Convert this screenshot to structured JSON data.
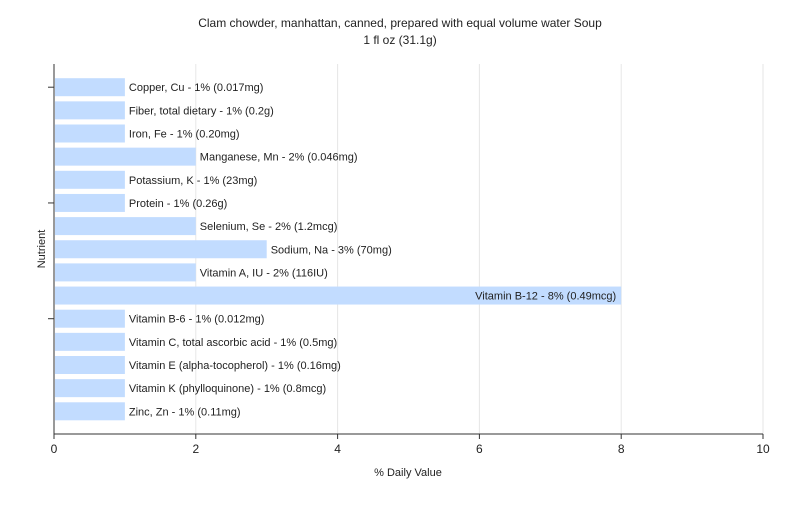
{
  "chart_data": {
    "type": "bar",
    "orientation": "horizontal",
    "title": "Clam chowder, manhattan, canned, prepared with equal volume water Soup",
    "subtitle": "1 fl oz (31.1g)",
    "xlabel": "% Daily Value",
    "ylabel": "Nutrient",
    "xlim": [
      0,
      10
    ],
    "xticks": [
      "0",
      "2",
      "4",
      "6",
      "8",
      "10"
    ],
    "grid": true,
    "bar_color": "#c2dcff",
    "categories": [
      "Copper, Cu",
      "Fiber, total dietary",
      "Iron, Fe",
      "Manganese, Mn",
      "Potassium, K",
      "Protein",
      "Selenium, Se",
      "Sodium, Na",
      "Vitamin A, IU",
      "Vitamin B-12",
      "Vitamin B-6",
      "Vitamin C, total ascorbic acid",
      "Vitamin E (alpha-tocopherol)",
      "Vitamin K (phylloquinone)",
      "Zinc, Zn"
    ],
    "values": [
      1,
      1,
      1,
      2,
      1,
      1,
      2,
      3,
      2,
      8,
      1,
      1,
      1,
      1,
      1
    ],
    "labels": [
      "Copper, Cu - 1% (0.017mg)",
      "Fiber, total dietary - 1% (0.2g)",
      "Iron, Fe - 1% (0.20mg)",
      "Manganese, Mn - 2% (0.046mg)",
      "Potassium, K - 1% (23mg)",
      "Protein - 1% (0.26g)",
      "Selenium, Se - 2% (1.2mcg)",
      "Sodium, Na - 3% (70mg)",
      "Vitamin A, IU - 2% (116IU)",
      "Vitamin B-12 - 8% (0.49mcg)",
      "Vitamin B-6 - 1% (0.012mg)",
      "Vitamin C, total ascorbic acid - 1% (0.5mg)",
      "Vitamin E (alpha-tocopherol) - 1% (0.16mg)",
      "Vitamin K (phylloquinone) - 1% (0.8mcg)",
      "Zinc, Zn - 1% (0.11mg)"
    ]
  }
}
